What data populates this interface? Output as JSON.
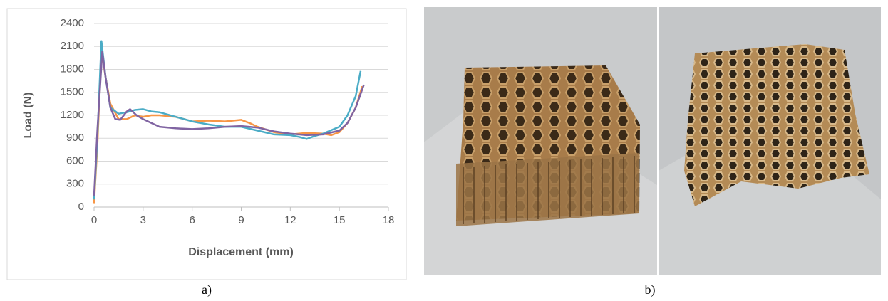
{
  "chart_data": {
    "type": "line",
    "xlabel": "Displacement (mm)",
    "ylabel": "Load (N)",
    "xlim": [
      0,
      18
    ],
    "xticks": [
      0,
      3,
      6,
      9,
      12,
      15,
      18
    ],
    "ylim": [
      0,
      2400
    ],
    "yticks": [
      0,
      300,
      600,
      900,
      1200,
      1500,
      1800,
      2100,
      2400
    ],
    "grid": true,
    "series": [
      {
        "color": "#f79646",
        "x": [
          0,
          0.2,
          0.45,
          0.7,
          1,
          1.5,
          2,
          2.5,
          3,
          3.5,
          4,
          5,
          6,
          7,
          8,
          9,
          9.5,
          10,
          11,
          12,
          13,
          14,
          14.5,
          15,
          15.5,
          16,
          16.4
        ],
        "values": [
          50,
          800,
          2050,
          1700,
          1350,
          1150,
          1150,
          1200,
          1180,
          1200,
          1200,
          1180,
          1120,
          1130,
          1120,
          1140,
          1100,
          1050,
          980,
          950,
          970,
          960,
          940,
          980,
          1100,
          1300,
          1580
        ]
      },
      {
        "color": "#4bacc6",
        "x": [
          0,
          0.2,
          0.45,
          0.7,
          1,
          1.5,
          2,
          2.5,
          3,
          3.5,
          4,
          5,
          6,
          7,
          8,
          9,
          10,
          11,
          12,
          12.5,
          13,
          13.5,
          14,
          15,
          15.5,
          16,
          16.3
        ],
        "values": [
          100,
          900,
          2170,
          1700,
          1300,
          1220,
          1240,
          1270,
          1280,
          1250,
          1240,
          1180,
          1120,
          1080,
          1050,
          1050,
          1000,
          950,
          940,
          920,
          890,
          930,
          960,
          1050,
          1200,
          1450,
          1780
        ]
      },
      {
        "color": "#8064a2",
        "x": [
          0,
          0.2,
          0.5,
          0.7,
          1,
          1.3,
          1.6,
          2,
          2.2,
          2.6,
          3,
          4,
          5,
          6,
          7,
          8,
          9,
          10,
          11,
          12,
          13,
          14,
          15,
          15.5,
          16,
          16.5
        ],
        "values": [
          150,
          1000,
          2030,
          1700,
          1300,
          1150,
          1140,
          1250,
          1280,
          1200,
          1150,
          1050,
          1030,
          1020,
          1030,
          1050,
          1060,
          1040,
          990,
          960,
          940,
          950,
          1000,
          1100,
          1300,
          1600
        ]
      }
    ]
  },
  "captions": [
    "a)",
    "b)"
  ]
}
